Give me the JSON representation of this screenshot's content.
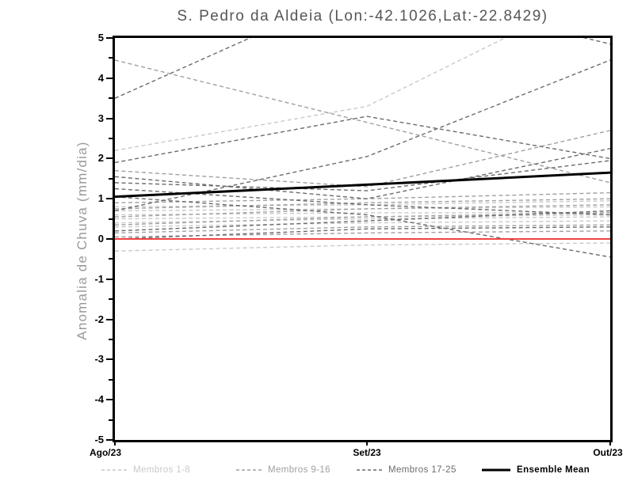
{
  "title": "S. Pedro da Aldeia (Lon:-42.1026,Lat:-22.8429)",
  "chart_data": {
    "type": "line",
    "title": "S. Pedro da Aldeia (Lon:-42.1026,Lat:-22.8429)",
    "xlabel": "",
    "ylabel": "Anomalia de Chuva (mm/dia)",
    "x_categories": [
      "Ago/23",
      "Set/23",
      "Out/23"
    ],
    "ylim": [
      -5,
      5
    ],
    "y_major_step": 1,
    "y_minor_step": 0.5,
    "grid": "off",
    "legend_position": "bottom",
    "zero_line": {
      "value": 0,
      "color": "#f04343"
    },
    "groups": [
      {
        "name": "Membros 1-8",
        "color": "#c9c9c9",
        "style": "dashed",
        "members": [
          {
            "name": "m1",
            "values": [
              2.2,
              3.3,
              6.3
            ]
          },
          {
            "name": "m2",
            "values": [
              -0.3,
              -0.15,
              -0.1
            ]
          },
          {
            "name": "m3",
            "values": [
              0.8,
              0.85,
              0.95
            ]
          },
          {
            "name": "m4",
            "values": [
              0.7,
              0.75,
              0.8
            ]
          },
          {
            "name": "m5",
            "values": [
              0.6,
              0.65,
              0.65
            ]
          },
          {
            "name": "m6",
            "values": [
              0.5,
              0.55,
              0.6
            ]
          },
          {
            "name": "m7",
            "values": [
              0.4,
              0.5,
              0.55
            ]
          },
          {
            "name": "m8",
            "values": [
              0.3,
              0.4,
              0.45
            ]
          }
        ]
      },
      {
        "name": "Membros 9-16",
        "color": "#a0a0a0",
        "style": "dashed",
        "members": [
          {
            "name": "m9",
            "values": [
              4.45,
              2.9,
              1.4
            ]
          },
          {
            "name": "m10",
            "values": [
              1.7,
              1.3,
              2.7
            ]
          },
          {
            "name": "m11",
            "values": [
              0.9,
              1.0,
              1.15
            ]
          },
          {
            "name": "m12",
            "values": [
              0.75,
              0.9,
              1.0
            ]
          },
          {
            "name": "m13",
            "values": [
              0.55,
              0.75,
              0.85
            ]
          },
          {
            "name": "m14",
            "values": [
              0.35,
              0.55,
              0.65
            ]
          },
          {
            "name": "m15",
            "values": [
              0.15,
              0.3,
              0.35
            ]
          },
          {
            "name": "m16",
            "values": [
              0.05,
              0.15,
              0.2
            ]
          }
        ]
      },
      {
        "name": "Membros 17-25",
        "color": "#6b6b6b",
        "style": "dashed",
        "members": [
          {
            "name": "m17",
            "values": [
              3.5,
              6.3,
              4.85
            ]
          },
          {
            "name": "m18",
            "values": [
              0.7,
              2.05,
              4.45
            ]
          },
          {
            "name": "m19",
            "values": [
              1.9,
              3.05,
              2.0
            ]
          },
          {
            "name": "m20",
            "values": [
              1.55,
              1.0,
              2.25
            ]
          },
          {
            "name": "m21",
            "values": [
              1.4,
              1.2,
              1.95
            ]
          },
          {
            "name": "m22",
            "values": [
              1.25,
              0.85,
              0.6
            ]
          },
          {
            "name": "m23",
            "values": [
              1.05,
              0.6,
              -0.45
            ]
          },
          {
            "name": "m24",
            "values": [
              0.2,
              0.45,
              0.7
            ]
          },
          {
            "name": "m25",
            "values": [
              0.0,
              0.25,
              0.3
            ]
          }
        ]
      }
    ],
    "mean": {
      "name": "Ensemble Mean",
      "color": "#000000",
      "style": "solid",
      "values": [
        1.05,
        1.35,
        1.65
      ]
    }
  }
}
